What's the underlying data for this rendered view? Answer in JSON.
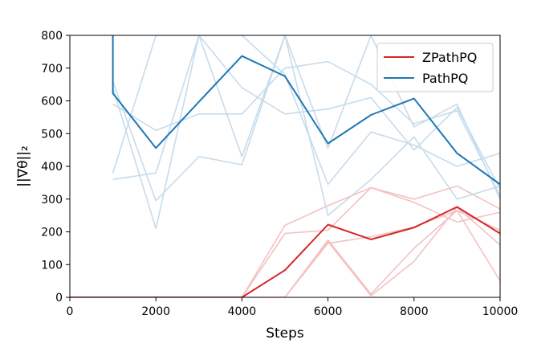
{
  "chart_data": {
    "type": "line",
    "xlabel": "Steps",
    "ylabel": "||∇θ||₂",
    "xlim": [
      0,
      10000
    ],
    "ylim": [
      0,
      800
    ],
    "x_ticks": [
      0,
      2000,
      4000,
      6000,
      8000,
      10000
    ],
    "y_ticks": [
      0,
      100,
      200,
      300,
      400,
      500,
      600,
      700,
      800
    ],
    "grid": false,
    "legend_position": "upper-right",
    "colors": {
      "ZPathPQ": "#d62728",
      "ZPathPQ_faint": "#f4c2c2",
      "PathPQ": "#1f77b4",
      "PathPQ_faint": "#c6dcec"
    },
    "series": [
      {
        "name": "ZPathPQ",
        "x": [
          0,
          1000,
          2000,
          3000,
          4000,
          5000,
          6000,
          7000,
          8000,
          9000,
          10000
        ],
        "values": [
          0,
          0,
          0,
          0,
          0,
          83,
          222,
          177,
          213,
          276,
          195
        ]
      },
      {
        "name": "PathPQ",
        "x": [
          1000,
          1000,
          2000,
          3000,
          4000,
          5000,
          6000,
          7000,
          8000,
          9000,
          10000
        ],
        "values": [
          800,
          623,
          456,
          597,
          737,
          675,
          470,
          557,
          607,
          440,
          345
        ]
      }
    ],
    "background_runs": {
      "ZPathPQ": [
        {
          "x": [
            0,
            4000,
            5000,
            6000,
            7000,
            8000,
            9000,
            10000
          ],
          "values": [
            0,
            0,
            195,
            205,
            335,
            300,
            340,
            270
          ]
        },
        {
          "x": [
            0,
            4000,
            5000,
            6000,
            7000,
            8000,
            9000,
            10000
          ],
          "values": [
            0,
            0,
            220,
            280,
            335,
            290,
            230,
            260
          ]
        },
        {
          "x": [
            0,
            4000,
            5000,
            6000,
            7000,
            8000,
            9000,
            10000
          ],
          "values": [
            0,
            0,
            0,
            175,
            10,
            150,
            265,
            50
          ]
        },
        {
          "x": [
            0,
            4000,
            5000,
            6000,
            7000,
            8000,
            9000,
            10000
          ],
          "values": [
            0,
            0,
            0,
            170,
            5,
            110,
            275,
            160
          ]
        },
        {
          "x": [
            0,
            4000,
            5000,
            6000,
            7000,
            8000,
            9000,
            10000
          ],
          "values": [
            0,
            0,
            0,
            165,
            185,
            215,
            265,
            205
          ]
        }
      ],
      "PathPQ": [
        {
          "x": [
            1000,
            2000,
            3000,
            4000,
            5000,
            6000,
            7000,
            8000,
            9000,
            10000
          ],
          "values": [
            380,
            800,
            800,
            640,
            560,
            575,
            610,
            450,
            580,
            330
          ]
        },
        {
          "x": [
            1000,
            2000,
            3000,
            4000,
            5000,
            6000,
            7000,
            8000,
            9000,
            10000
          ],
          "values": [
            360,
            380,
            800,
            800,
            680,
            345,
            505,
            465,
            400,
            440
          ]
        },
        {
          "x": [
            1000,
            2000,
            3000,
            4000,
            5000,
            6000,
            7000,
            8000,
            9000,
            10000
          ],
          "values": [
            640,
            210,
            800,
            430,
            800,
            250,
            360,
            490,
            300,
            340
          ]
        },
        {
          "x": [
            1000,
            2000,
            3000,
            4000,
            5000,
            6000,
            7000,
            8000,
            9000,
            10000
          ],
          "values": [
            660,
            295,
            430,
            405,
            800,
            455,
            800,
            520,
            590,
            300
          ]
        },
        {
          "x": [
            1000,
            2000,
            3000,
            4000,
            5000,
            6000,
            7000,
            8000,
            9000,
            10000
          ],
          "values": [
            590,
            510,
            560,
            560,
            700,
            720,
            650,
            530,
            570,
            310
          ]
        }
      ]
    }
  }
}
